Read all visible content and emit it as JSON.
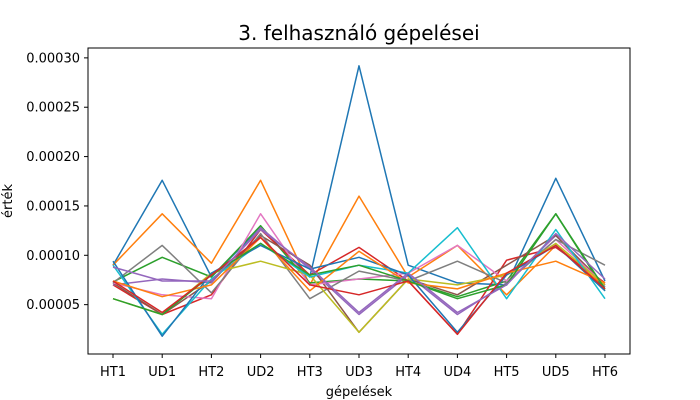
{
  "chart_data": {
    "type": "line",
    "title": "3. felhasználó gépelései",
    "xlabel": "gépelések",
    "ylabel": "érték",
    "categories": [
      "HT1",
      "UD1",
      "HT2",
      "UD2",
      "HT3",
      "UD3",
      "HT4",
      "UD4",
      "HT5",
      "UD5",
      "HT6"
    ],
    "ylim": [
      0.0,
      0.00031
    ],
    "yticks": [
      5e-05,
      0.0001,
      0.00015,
      0.0002,
      0.00025,
      0.0003
    ],
    "ytick_labels": [
      "0.00005",
      "0.00010",
      "0.00015",
      "0.00020",
      "0.00025",
      "0.00030"
    ],
    "grid": false,
    "legend": "none",
    "series": [
      {
        "color": "#1f77b4",
        "values": [
          9e-05,
          0.000176,
          7.8e-05,
          0.000128,
          7.8e-05,
          0.000292,
          9e-05,
          7.2e-05,
          7e-05,
          0.000178,
          7.4e-05
        ]
      },
      {
        "color": "#ff7f0e",
        "values": [
          9e-05,
          0.000142,
          9.2e-05,
          0.000176,
          7e-05,
          0.00016,
          7.8e-05,
          0.00011,
          6e-05,
          0.00011,
          6.8e-05
        ]
      },
      {
        "color": "#2ca02c",
        "values": [
          7.3e-05,
          9.8e-05,
          7.8e-05,
          0.00013,
          7.2e-05,
          7.6e-05,
          7.4e-05,
          5.8e-05,
          7.4e-05,
          0.000142,
          6.4e-05
        ]
      },
      {
        "color": "#d62728",
        "values": [
          7e-05,
          4e-05,
          6e-05,
          0.000126,
          8e-05,
          0.000108,
          7.4e-05,
          2e-05,
          9.5e-05,
          0.000108,
          7.2e-05
        ]
      },
      {
        "color": "#9467bd",
        "values": [
          7e-05,
          7.6e-05,
          7.2e-05,
          0.000128,
          8.6e-05,
          4e-05,
          8e-05,
          4e-05,
          7.2e-05,
          0.00012,
          6.8e-05
        ]
      },
      {
        "color": "#8c564b",
        "values": [
          7.2e-05,
          4e-05,
          7.4e-05,
          0.00012,
          9e-05,
          2.2e-05,
          7.6e-05,
          6e-05,
          9e-05,
          0.00012,
          7e-05
        ]
      },
      {
        "color": "#e377c2",
        "values": [
          7.2e-05,
          6e-05,
          5.6e-05,
          0.000142,
          7e-05,
          7.6e-05,
          8.2e-05,
          0.00011,
          7.4e-05,
          0.000116,
          7e-05
        ]
      },
      {
        "color": "#7f7f7f",
        "values": [
          7.2e-05,
          0.00011,
          6.2e-05,
          0.000122,
          5.6e-05,
          8.4e-05,
          7.4e-05,
          9.4e-05,
          7.2e-05,
          0.000116,
          9e-05
        ]
      },
      {
        "color": "#bcbd22",
        "values": [
          5.6e-05,
          4e-05,
          8.2e-05,
          9.4e-05,
          8e-05,
          2.2e-05,
          7.6e-05,
          7e-05,
          8e-05,
          0.000112,
          7e-05
        ]
      },
      {
        "color": "#17becf",
        "values": [
          9e-05,
          2e-05,
          7.6e-05,
          0.000112,
          7.8e-05,
          9e-05,
          8.2e-05,
          0.000128,
          5.6e-05,
          0.000126,
          5.6e-05
        ]
      },
      {
        "color": "#1f77b4",
        "values": [
          9.4e-05,
          1.8e-05,
          8.2e-05,
          0.00011,
          8.6e-05,
          9.8e-05,
          8e-05,
          2.2e-05,
          8e-05,
          0.00011,
          6.4e-05
        ]
      },
      {
        "color": "#ff7f0e",
        "values": [
          7.4e-05,
          5.8e-05,
          7e-05,
          0.000118,
          6.4e-05,
          0.000104,
          7.2e-05,
          6.6e-05,
          8.2e-05,
          9.4e-05,
          7.2e-05
        ]
      },
      {
        "color": "#2ca02c",
        "values": [
          5.6e-05,
          4e-05,
          8e-05,
          0.000112,
          8e-05,
          9e-05,
          7.4e-05,
          5.6e-05,
          7e-05,
          0.000142,
          6.6e-05
        ]
      },
      {
        "color": "#d62728",
        "values": [
          7.4e-05,
          4.2e-05,
          8e-05,
          0.000118,
          7e-05,
          6e-05,
          7.4e-05,
          2e-05,
          8.2e-05,
          0.00011,
          6.6e-05
        ]
      },
      {
        "color": "#9467bd",
        "values": [
          8.8e-05,
          7.4e-05,
          7.4e-05,
          0.000126,
          8.8e-05,
          4.2e-05,
          8.2e-05,
          4.2e-05,
          7e-05,
          0.000122,
          7.6e-05
        ]
      }
    ]
  }
}
